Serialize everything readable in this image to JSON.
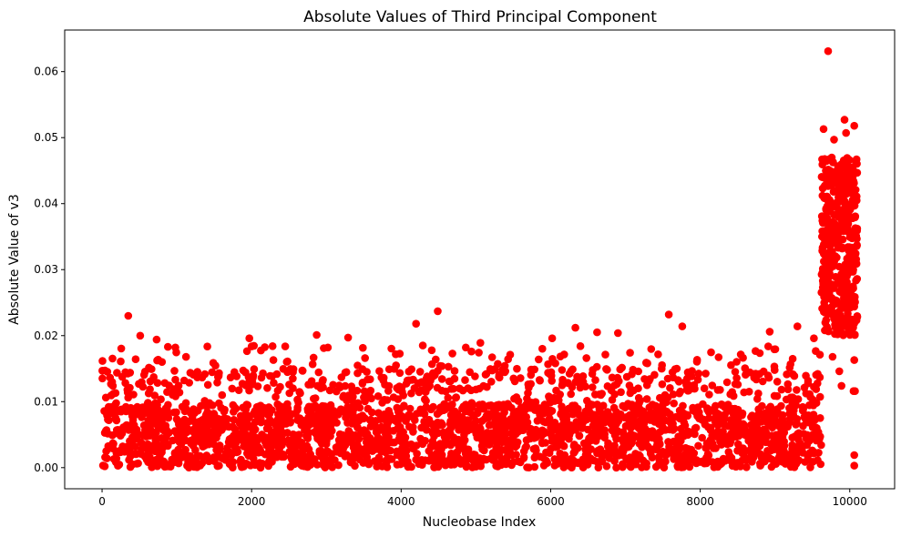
{
  "chart_data": {
    "type": "scatter",
    "title": "Absolute Values of Third Principal Component",
    "xlabel": "Nucleobase Index",
    "ylabel": "Absolute Value of v3",
    "xlim": [
      -500,
      10600
    ],
    "ylim": [
      -0.0032,
      0.0663
    ],
    "xticks": [
      0,
      2000,
      4000,
      6000,
      8000,
      10000
    ],
    "xtick_labels": [
      "0",
      "2000",
      "4000",
      "6000",
      "8000",
      "10000"
    ],
    "yticks": [
      0.0,
      0.01,
      0.02,
      0.03,
      0.04,
      0.05,
      0.06
    ],
    "ytick_labels": [
      "0.00",
      "0.01",
      "0.02",
      "0.03",
      "0.04",
      "0.05",
      "0.06"
    ],
    "grid": false,
    "marker_color": "#ff0000",
    "bulk_region": {
      "x_range": [
        0,
        9620
      ],
      "y_max": 0.012
    },
    "tail_region": {
      "x_range": [
        9620,
        10100
      ],
      "y_min": 0.02,
      "y_max": 0.047
    },
    "outliers": [
      {
        "x": 350,
        "y": 0.023
      },
      {
        "x": 510,
        "y": 0.02
      },
      {
        "x": 730,
        "y": 0.0194
      },
      {
        "x": 880,
        "y": 0.0183
      },
      {
        "x": 980,
        "y": 0.0182
      },
      {
        "x": 1970,
        "y": 0.0196
      },
      {
        "x": 2870,
        "y": 0.0201
      },
      {
        "x": 3290,
        "y": 0.0197
      },
      {
        "x": 3020,
        "y": 0.0182
      },
      {
        "x": 4200,
        "y": 0.0218
      },
      {
        "x": 4490,
        "y": 0.0237
      },
      {
        "x": 4290,
        "y": 0.0185
      },
      {
        "x": 5060,
        "y": 0.0189
      },
      {
        "x": 6020,
        "y": 0.0196
      },
      {
        "x": 6330,
        "y": 0.0212
      },
      {
        "x": 6620,
        "y": 0.0205
      },
      {
        "x": 6900,
        "y": 0.0204
      },
      {
        "x": 7580,
        "y": 0.0232
      },
      {
        "x": 7760,
        "y": 0.0214
      },
      {
        "x": 8930,
        "y": 0.0206
      },
      {
        "x": 9300,
        "y": 0.0214
      },
      {
        "x": 9520,
        "y": 0.0196
      },
      {
        "x": 9710,
        "y": 0.0631
      },
      {
        "x": 9650,
        "y": 0.0513
      },
      {
        "x": 9790,
        "y": 0.0497
      },
      {
        "x": 9930,
        "y": 0.0527
      },
      {
        "x": 10060,
        "y": 0.0518
      },
      {
        "x": 9950,
        "y": 0.0507
      },
      {
        "x": 10060,
        "y": 0.0244
      },
      {
        "x": 9770,
        "y": 0.0168
      },
      {
        "x": 9860,
        "y": 0.0146
      },
      {
        "x": 9890,
        "y": 0.0124
      },
      {
        "x": 10060,
        "y": 0.0163
      },
      {
        "x": 10050,
        "y": 0.0116
      },
      {
        "x": 10070,
        "y": 0.0116
      },
      {
        "x": 10060,
        "y": 0.0019
      },
      {
        "x": 10060,
        "y": 0.0003
      }
    ]
  }
}
